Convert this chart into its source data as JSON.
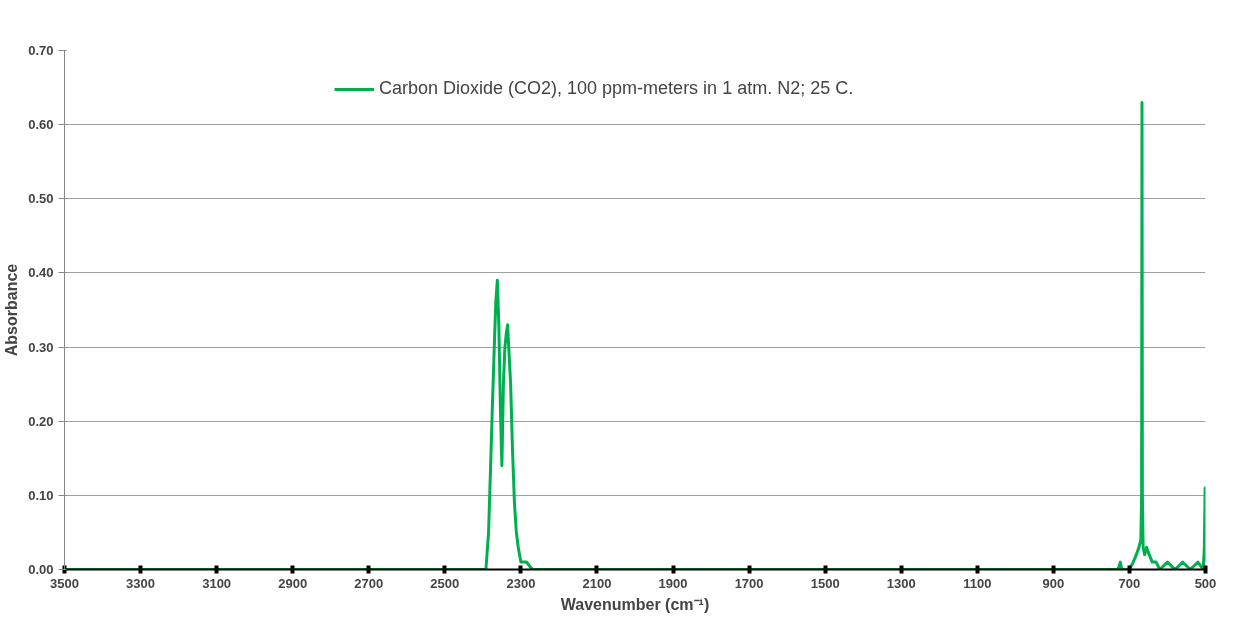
{
  "chart_data": {
    "type": "line",
    "xlabel": "Wavenumber (cm⁻¹)",
    "ylabel": "Absorbance",
    "xlim": [
      3500,
      500
    ],
    "xticks": [
      3500,
      3300,
      3100,
      2900,
      2700,
      2500,
      2300,
      2100,
      1900,
      1700,
      1500,
      1300,
      1100,
      900,
      700,
      500
    ],
    "ylim": [
      0,
      0.7
    ],
    "yticks": [
      {
        "value": 0,
        "label": "0.00"
      },
      {
        "value": 0.1,
        "label": "0.10"
      },
      {
        "value": 0.2,
        "label": "0.20"
      },
      {
        "value": 0.3,
        "label": "0.30"
      },
      {
        "value": 0.4,
        "label": "0.40"
      },
      {
        "value": 0.5,
        "label": "0.50"
      },
      {
        "value": 0.6,
        "label": "0.60"
      },
      {
        "value": 0.7,
        "label": "0.70"
      }
    ],
    "grid": "y",
    "legend": "top",
    "marker": "none",
    "line_style": "solid",
    "x": [
      3500,
      2400,
      2392,
      2385,
      2379,
      2375,
      2370,
      2366,
      2362,
      2358,
      2354,
      2350,
      2346,
      2342,
      2338,
      2335,
      2331,
      2327,
      2322,
      2317,
      2312,
      2307,
      2300,
      2295,
      2285,
      2270,
      2250,
      730,
      724,
      720,
      700,
      690,
      682,
      675,
      670,
      668,
      667,
      666,
      664,
      660,
      655,
      648,
      640,
      630,
      620,
      600,
      580,
      560,
      540,
      520,
      506,
      503,
      501,
      500
    ],
    "series": [
      {
        "name": "Carbon Dioxide (CO2), 100 ppm-meters in 1 atm. N2; 25 C.",
        "color": "#00b050",
        "values": [
          0,
          0,
          0,
          0.05,
          0.15,
          0.22,
          0.3,
          0.36,
          0.39,
          0.33,
          0.22,
          0.14,
          0.25,
          0.3,
          0.32,
          0.33,
          0.29,
          0.25,
          0.16,
          0.09,
          0.05,
          0.03,
          0.01,
          0.01,
          0.01,
          0,
          0,
          0,
          0.01,
          0,
          0,
          0.01,
          0.02,
          0.03,
          0.04,
          0.1,
          0.63,
          0.1,
          0.03,
          0.02,
          0.03,
          0.02,
          0.01,
          0.01,
          0,
          0.01,
          0,
          0.01,
          0,
          0.01,
          0,
          0.03,
          0.11,
          0.01
        ]
      }
    ]
  }
}
